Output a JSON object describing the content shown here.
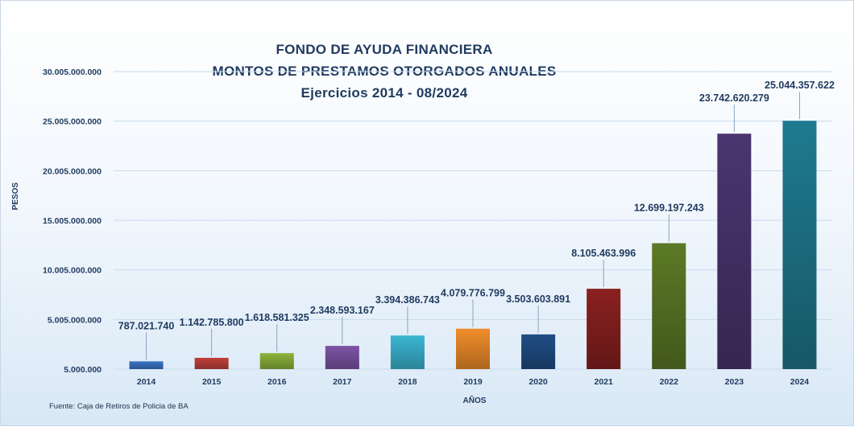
{
  "chart_data": {
    "type": "bar",
    "title": [
      "FONDO DE AYUDA FINANCIERA",
      "MONTOS  DE PRESTAMOS  OTORGADOS  ANUALES",
      "Ejercicios  2014 - 08/2024"
    ],
    "xlabel": "AÑOS",
    "ylabel": "PESOS",
    "source": "Fuente: Caja de Retiros de Policia de BA",
    "categories": [
      "2014",
      "2015",
      "2016",
      "2017",
      "2018",
      "2019",
      "2020",
      "2021",
      "2022",
      "2023",
      "2024"
    ],
    "values": [
      787021740,
      1142785800,
      1618581325,
      2348593167,
      3394386743,
      4079776799,
      3503603891,
      8105463996,
      12699197243,
      23742620279,
      25044357622
    ],
    "data_labels": [
      "787.021.740",
      "1.142.785.800",
      "1.618.581.325",
      "2.348.593.167",
      "3.394.386.743",
      "4.079.776.799",
      "3.503.603.891",
      "8.105.463.996",
      "12.699.197.243",
      "23.742.620.279",
      "25.044.357.622"
    ],
    "ylim": [
      5000000,
      30005000000
    ],
    "yticks": [
      5000000,
      5005000000,
      10005000000,
      15005000000,
      20005000000,
      25005000000,
      30005000000
    ],
    "ytick_labels": [
      "5.000.000",
      "5.005.000.000",
      "10.005.000.000",
      "15.005.000.000",
      "20.005.000.000",
      "25.005.000.000",
      "30.005.000.000"
    ],
    "grid": true,
    "legend": "none",
    "bar_colors": [
      "#3a75c4",
      "#c0403c",
      "#8db33b",
      "#7d54a6",
      "#3bb6d3",
      "#f08d2a",
      "#1f4e85",
      "#8a2020",
      "#5c7a26",
      "#4b3570",
      "#1f7a8f"
    ]
  }
}
